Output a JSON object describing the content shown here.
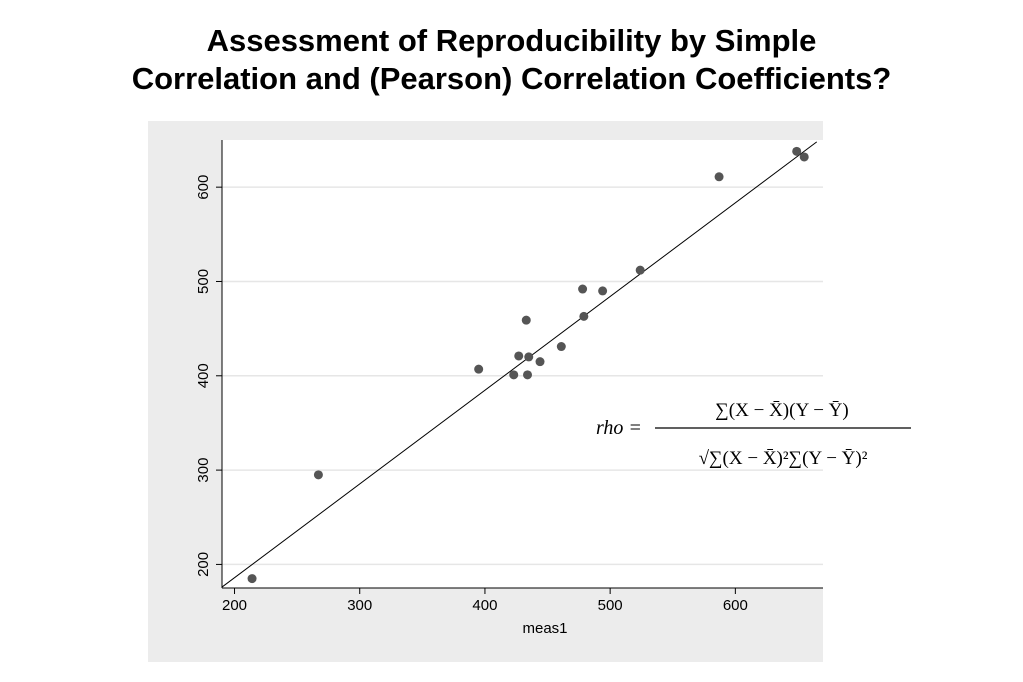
{
  "title": {
    "line1": "Assessment of Reproducibility by Simple",
    "line2": "Correlation and (Pearson) Correlation Coefficients?"
  },
  "formula": {
    "lhs": "rho =",
    "numerator": "∑(X − X̄)(Y − Ȳ)",
    "denominator": "√∑(X − X̄)²∑(Y − Ȳ)²"
  },
  "colors": {
    "plot_background": "#ececec",
    "inner_background": "#ffffff",
    "point": "#555555",
    "grid": "#e6e6e6",
    "line": "#000000"
  },
  "chart_data": {
    "type": "scatter",
    "title": "",
    "xlabel": "meas1",
    "ylabel": "",
    "xlim": [
      190,
      670
    ],
    "ylim": [
      175,
      650
    ],
    "xticks": [
      200,
      300,
      400,
      500,
      600
    ],
    "yticks": [
      200,
      300,
      400,
      500,
      600
    ],
    "grid": true,
    "points": [
      {
        "x": 214,
        "y": 185
      },
      {
        "x": 267,
        "y": 295
      },
      {
        "x": 395,
        "y": 407
      },
      {
        "x": 423,
        "y": 401
      },
      {
        "x": 427,
        "y": 421
      },
      {
        "x": 433,
        "y": 459
      },
      {
        "x": 434,
        "y": 401
      },
      {
        "x": 435,
        "y": 420
      },
      {
        "x": 444,
        "y": 415
      },
      {
        "x": 461,
        "y": 431
      },
      {
        "x": 478,
        "y": 492
      },
      {
        "x": 479,
        "y": 463
      },
      {
        "x": 494,
        "y": 490
      },
      {
        "x": 524,
        "y": 512
      },
      {
        "x": 587,
        "y": 611
      },
      {
        "x": 649,
        "y": 638
      },
      {
        "x": 655,
        "y": 632
      }
    ],
    "fit_line": {
      "x": [
        190,
        665
      ],
      "y": [
        176,
        648
      ]
    }
  }
}
